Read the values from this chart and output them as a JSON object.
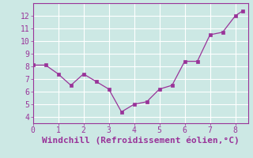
{
  "x": [
    0,
    0.5,
    1.0,
    1.5,
    2.0,
    2.5,
    3.0,
    3.5,
    4.0,
    4.5,
    5.0,
    5.5,
    6.0,
    6.5,
    7.0,
    7.5,
    8.0,
    8.3
  ],
  "y": [
    8.1,
    8.1,
    7.4,
    6.5,
    7.4,
    6.8,
    6.2,
    4.4,
    5.0,
    5.2,
    6.2,
    6.5,
    8.4,
    8.4,
    10.5,
    10.7,
    12.0,
    12.4
  ],
  "line_color": "#993399",
  "marker_color": "#993399",
  "bg_color": "#cce8e4",
  "grid_color": "#ffffff",
  "xlabel": "Windchill (Refroidissement éolien,°C)",
  "xlabel_color": "#993399",
  "xlim": [
    0,
    8.5
  ],
  "ylim": [
    3.5,
    13.0
  ],
  "xticks": [
    0,
    1,
    2,
    3,
    4,
    5,
    6,
    7,
    8
  ],
  "yticks": [
    4,
    5,
    6,
    7,
    8,
    9,
    10,
    11,
    12
  ],
  "tick_color": "#993399",
  "tick_fontsize": 7,
  "xlabel_fontsize": 8,
  "spine_color": "#993399"
}
